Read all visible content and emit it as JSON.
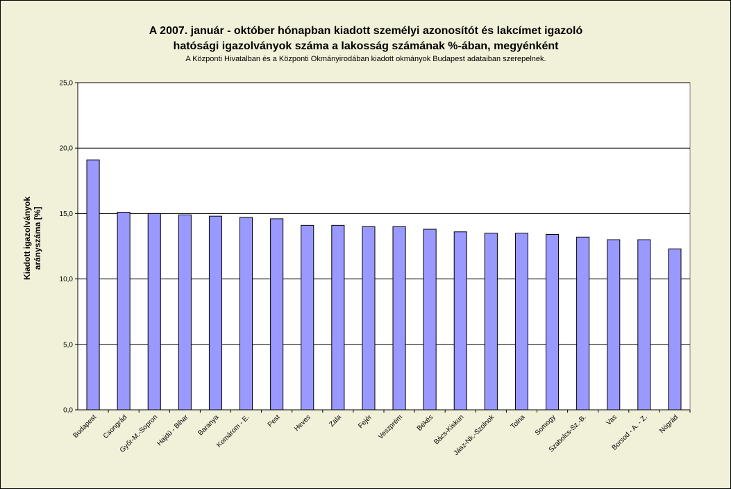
{
  "chart_data": {
    "type": "bar",
    "title_line1": "A 2007. január - október hónapban kiadott személyi azonosítót és lakcímet igazoló",
    "title_line2": "hatósági igazolványok száma a lakosság  számának %-ában, megyénként",
    "subtitle": "A Központi Hivatalban és a Központi Okmányirodában kiadott okmányok Budapest adataiban szerepelnek.",
    "ylabel_line1": "Kiadott igazolványok",
    "ylabel_line2": "arányszáma [%]",
    "xlabel": "",
    "ylim": [
      0,
      25
    ],
    "yticks": [
      "0,0",
      "5,0",
      "10,0",
      "15,0",
      "20,0",
      "25,0"
    ],
    "grid": true,
    "legend": "none",
    "categories": [
      "Budapest",
      "Csongrád",
      "Győr-M.-Sopron",
      "Hajdú - Bihar",
      "Baranya",
      "Komárom - E.",
      "Pest",
      "Heves",
      "Zala",
      "Fejér",
      "Veszprém",
      "Békés",
      "Bács-Kiskun",
      "Jász-Nk.-Szolnok",
      "Tolna",
      "Somogy",
      "Szabolcs-Sz.-B.",
      "Vas",
      "Borsod - A. - Z.",
      "Nógrád"
    ],
    "values": [
      19.1,
      15.1,
      15.0,
      14.9,
      14.8,
      14.7,
      14.6,
      14.1,
      14.1,
      14.0,
      14.0,
      13.8,
      13.6,
      13.5,
      13.5,
      13.4,
      13.2,
      13.0,
      13.0,
      12.3
    ],
    "colors": {
      "bar_fill": "#9999ff",
      "bar_stroke": "#000000",
      "background": "#f1f1d9",
      "plot_area": "#ffffff",
      "gridline": "#000000"
    }
  }
}
